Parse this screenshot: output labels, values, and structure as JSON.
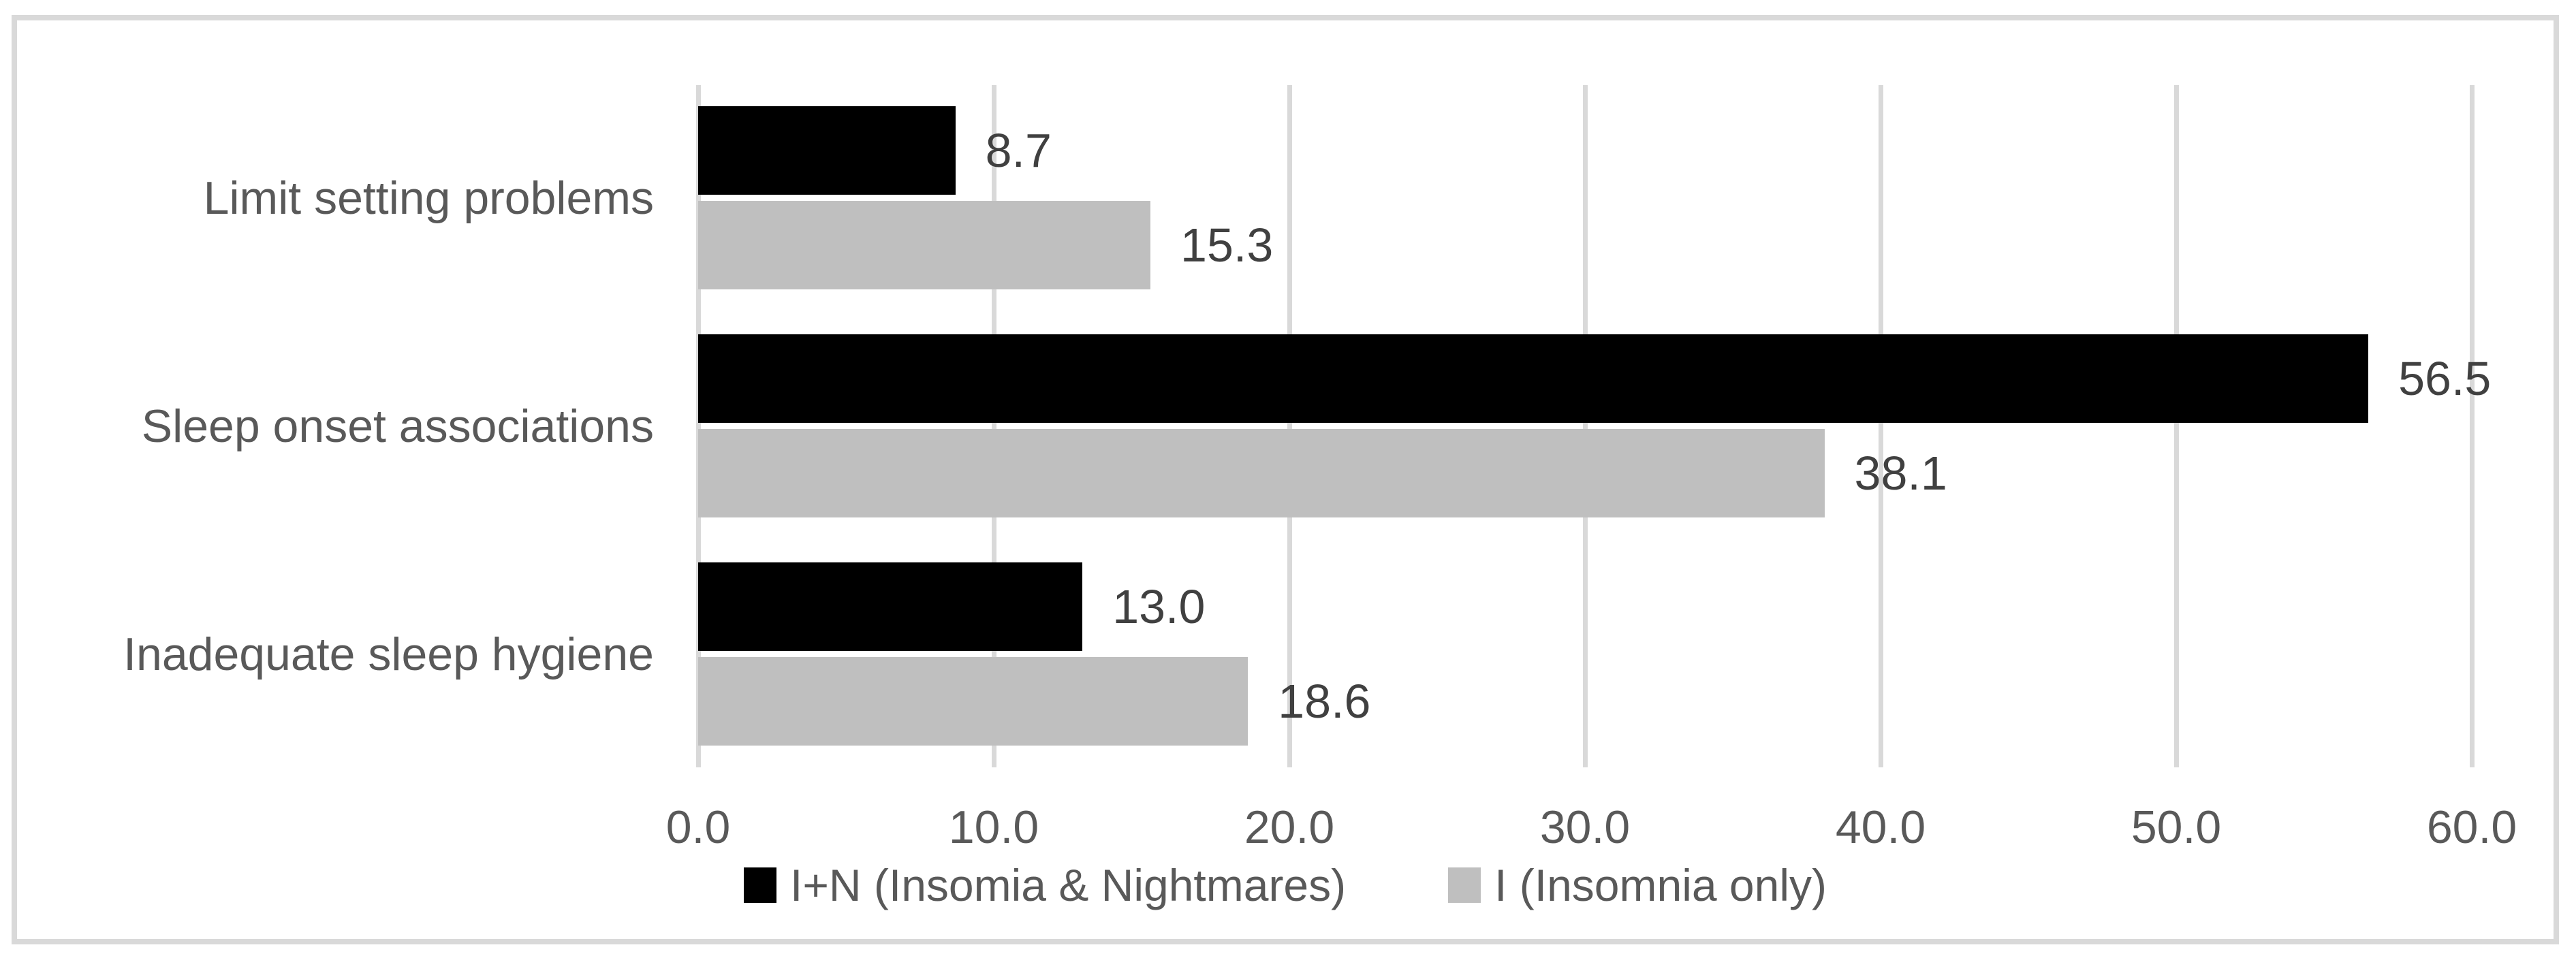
{
  "chart_data": {
    "type": "bar",
    "orientation": "horizontal",
    "title": "",
    "xlabel": "",
    "ylabel": "",
    "categories": [
      "Limit setting problems",
      "Sleep onset associations",
      "Inadequate sleep hygiene"
    ],
    "series": [
      {
        "name": "I+N (Insomia & Nightmares)",
        "color": "#000000",
        "values": [
          8.7,
          56.5,
          13.0
        ],
        "data_labels": [
          "8.7",
          "56.5",
          "13.0"
        ]
      },
      {
        "name": "I (Insomnia only)",
        "color": "#bfbfbf",
        "values": [
          15.3,
          38.1,
          18.6
        ],
        "data_labels": [
          "15.3",
          "38.1",
          "18.6"
        ]
      }
    ],
    "xlim": [
      0,
      60
    ],
    "x_ticks": [
      {
        "value": 0,
        "label": "0.0"
      },
      {
        "value": 10,
        "label": "10.0"
      },
      {
        "value": 20,
        "label": "20.0"
      },
      {
        "value": 30,
        "label": "30.0"
      },
      {
        "value": 40,
        "label": "40.0"
      },
      {
        "value": 50,
        "label": "50.0"
      },
      {
        "value": 60,
        "label": "60.0"
      }
    ],
    "grid": true,
    "legend_position": "bottom",
    "colors": {
      "series_1": "#000000",
      "series_2": "#bfbfbf",
      "gridline": "#d9d9d9",
      "frame_border": "#d9d9d9",
      "axis_text": "#595959",
      "data_label_text": "#404040",
      "background": "#ffffff"
    }
  }
}
